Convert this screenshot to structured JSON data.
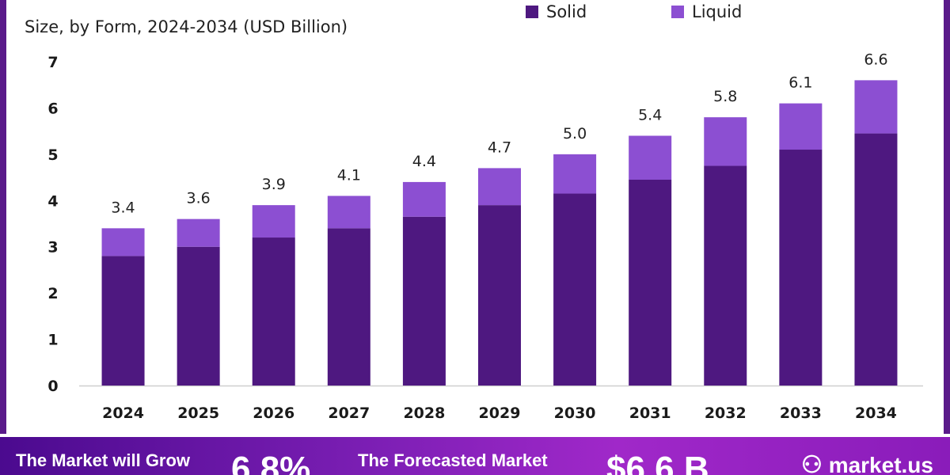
{
  "chart_data": {
    "type": "bar",
    "stacked": true,
    "subtitle": "Size, by Form, 2024-2034 (USD Billion)",
    "categories": [
      "2024",
      "2025",
      "2026",
      "2027",
      "2028",
      "2029",
      "2030",
      "2031",
      "2032",
      "2033",
      "2034"
    ],
    "series": [
      {
        "name": "Solid",
        "color": "#4e1880",
        "values": [
          2.8,
          3.0,
          3.2,
          3.4,
          3.65,
          3.9,
          4.15,
          4.45,
          4.75,
          5.1,
          5.45
        ]
      },
      {
        "name": "Liquid",
        "color": "#8c4fd2",
        "values": [
          0.6,
          0.6,
          0.7,
          0.7,
          0.75,
          0.8,
          0.85,
          0.95,
          1.05,
          1.0,
          1.15
        ]
      }
    ],
    "totals": [
      "3.4",
      "3.6",
      "3.9",
      "4.1",
      "4.4",
      "4.7",
      "5.0",
      "5.4",
      "5.8",
      "6.1",
      "6.6"
    ],
    "y_ticks": [
      "0",
      "1",
      "2",
      "3",
      "4",
      "5",
      "6",
      "7"
    ],
    "ylim": [
      0,
      7
    ],
    "legend_position": "top-right"
  },
  "banner": {
    "text1": "The Market will Grow",
    "value1": "6.8%",
    "text2": "The Forecasted Market",
    "value2": "$6.6 B",
    "logo": "market.us",
    "logo_icon": "market-us-logo-icon"
  }
}
